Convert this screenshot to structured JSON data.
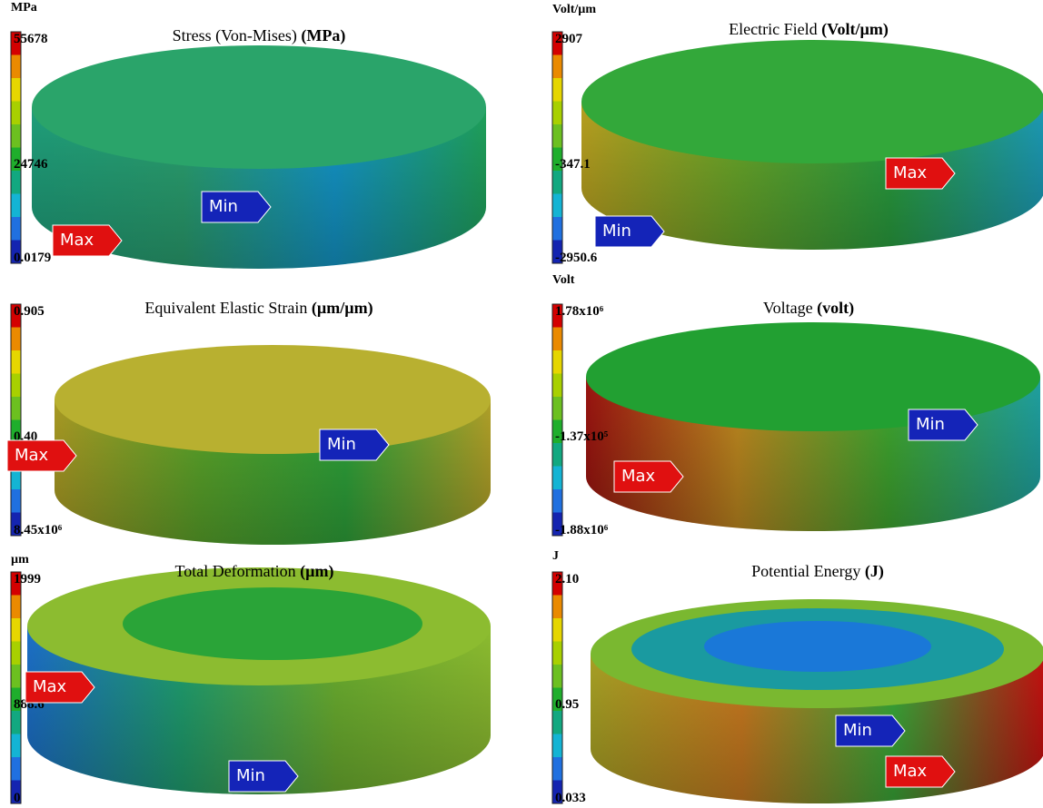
{
  "panels": [
    {
      "unit": "MPa",
      "max": "55678",
      "mid": "24746",
      "min": "0.0179",
      "title": "Stress (Von-Mises) ",
      "title_unit": "(MPa)",
      "max_tag": "Max",
      "min_tag": "Min"
    },
    {
      "unit": "Volt/µm",
      "max": "2907",
      "mid": "-347.1",
      "min": "-2950.6",
      "title": "Electric Field ",
      "title_unit": "(Volt/µm)",
      "max_tag": "Max",
      "min_tag": "Min"
    },
    {
      "max": "0.905",
      "mid": "0.40",
      "min": "8.45x10⁶",
      "title": "Equivalent Elastic Strain ",
      "title_unit": "(µm/µm)",
      "max_tag": "Max",
      "min_tag": "Min"
    },
    {
      "unit": "Volt",
      "max": "1.78x10⁶",
      "mid": "-1.37x10⁵",
      "min": "-1.88x10⁶",
      "title": "Voltage ",
      "title_unit": "(volt)",
      "max_tag": "Max",
      "min_tag": "Min"
    },
    {
      "unit": "µm",
      "max": "1999",
      "mid": "888.6",
      "min": "0",
      "title": "Total Deformation ",
      "title_unit": "(µm)",
      "max_tag": "Max",
      "min_tag": "Min"
    },
    {
      "unit": "J",
      "max": "2.10",
      "mid": "0.95",
      "min": "0.033",
      "title": "Potential Energy ",
      "title_unit": "(J)",
      "max_tag": "Max",
      "min_tag": "Min"
    }
  ]
}
